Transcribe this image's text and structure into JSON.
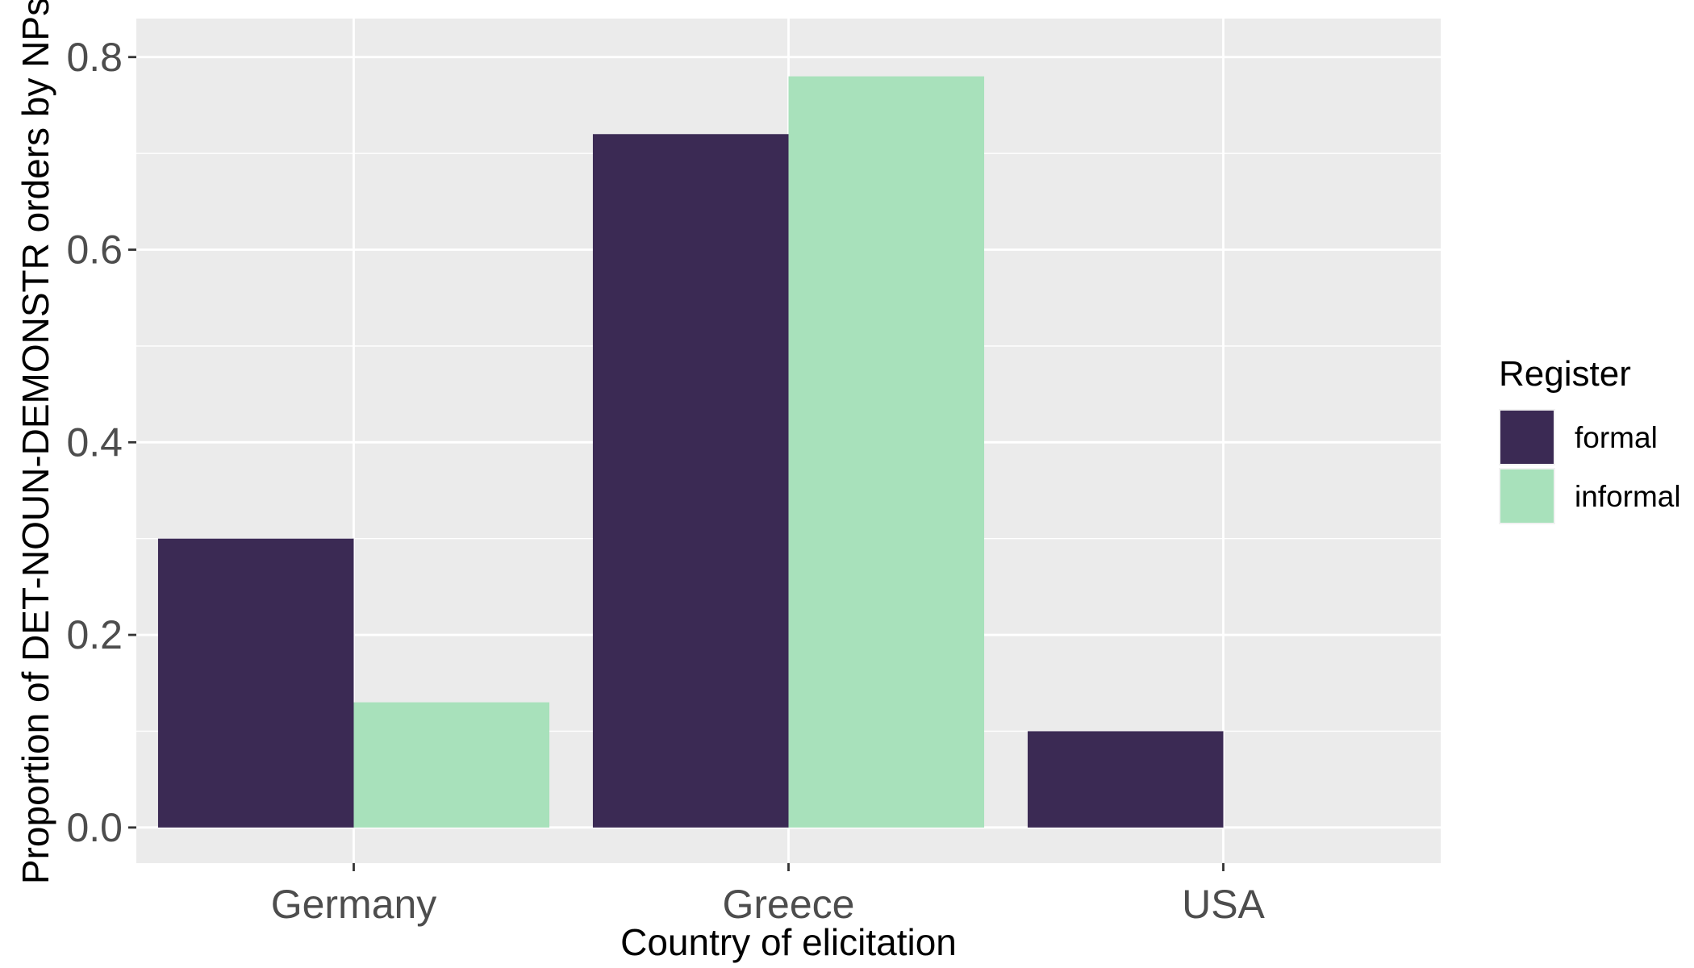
{
  "chart_data": {
    "type": "bar",
    "categories": [
      "Germany",
      "Greece",
      "USA"
    ],
    "series": [
      {
        "name": "formal",
        "values": [
          0.3,
          0.72,
          0.1
        ],
        "color": "#3b2a54"
      },
      {
        "name": "informal",
        "values": [
          0.13,
          0.78,
          0.0
        ],
        "color": "#a8e1bb"
      }
    ],
    "xlabel": "Country of elicitation",
    "ylabel": "Proportion of DET-NOUN-DEMONSTR orders by NPs",
    "yticks": [
      "0.0",
      "0.2",
      "0.4",
      "0.6",
      "0.8"
    ],
    "ylim": [
      -0.037,
      0.84
    ],
    "legend": {
      "title": "Register",
      "position": "right"
    },
    "grid": true,
    "panel_background": "#ebebeb",
    "grid_color": "#ffffff"
  }
}
